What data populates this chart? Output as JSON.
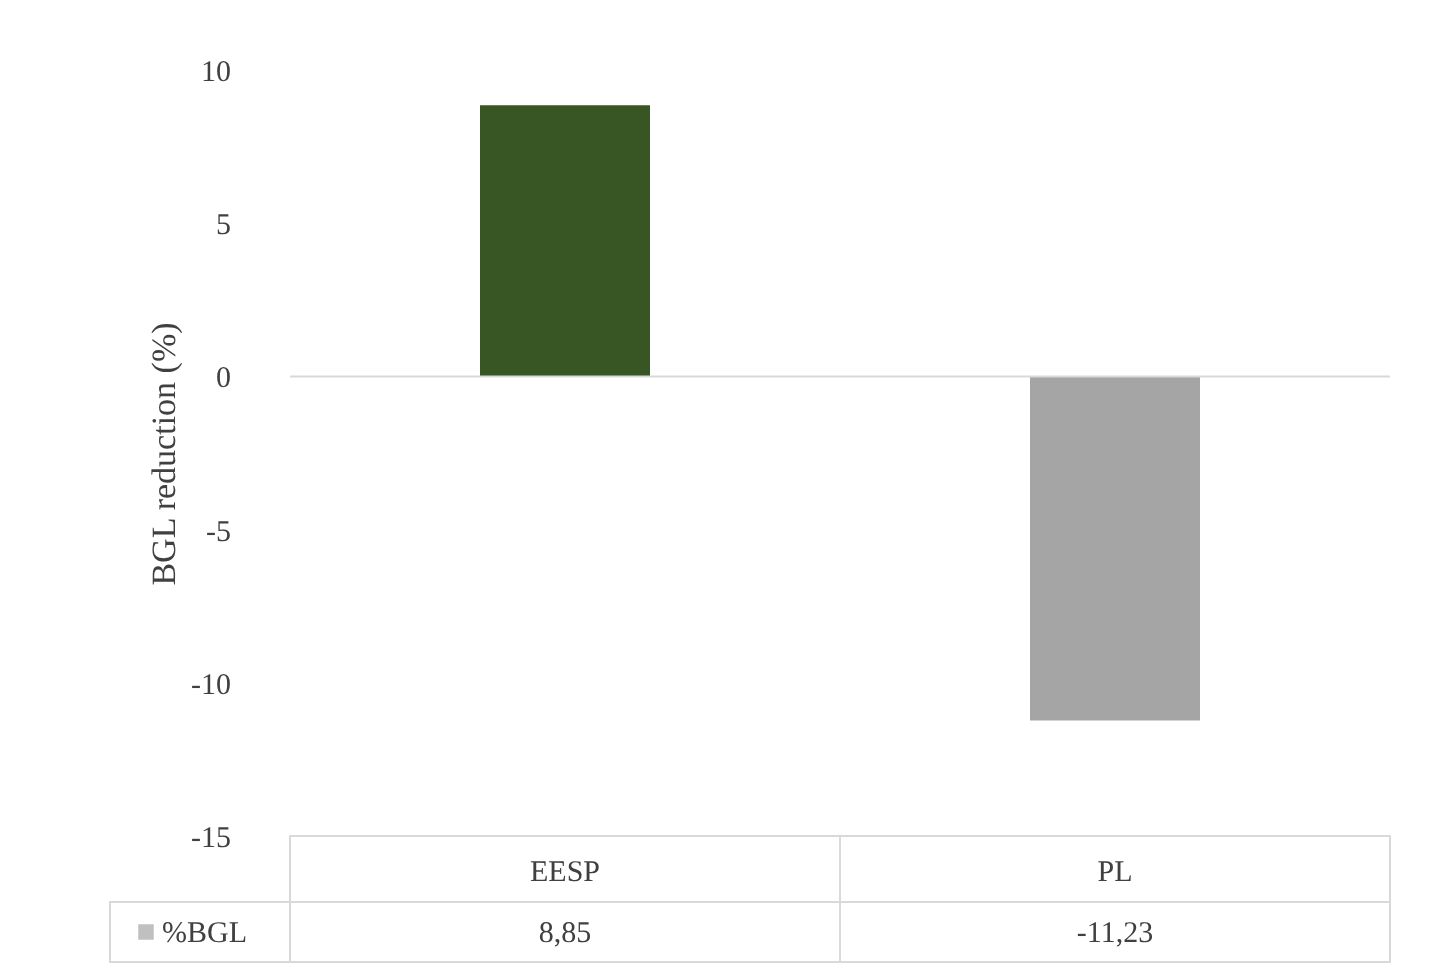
{
  "chart_data": {
    "type": "bar",
    "ylabel": "BGL reduction (%)",
    "categories": [
      "EESP",
      "PL"
    ],
    "series": [
      {
        "name": "%BGL",
        "color": "#a5a5a5",
        "colors": [
          "#375623",
          "#a5a5a5"
        ],
        "values": [
          8.85,
          -11.23
        ],
        "value_labels": [
          "8,85",
          "-11,23"
        ]
      }
    ],
    "ylim": [
      -15,
      10
    ],
    "yticks": [
      -15,
      -10,
      -5,
      0,
      5,
      10
    ],
    "grid": false,
    "legend": "bottom",
    "ref_lines": [
      {
        "axis": "y",
        "value": 0,
        "color": "#d9d9d9"
      }
    ]
  }
}
